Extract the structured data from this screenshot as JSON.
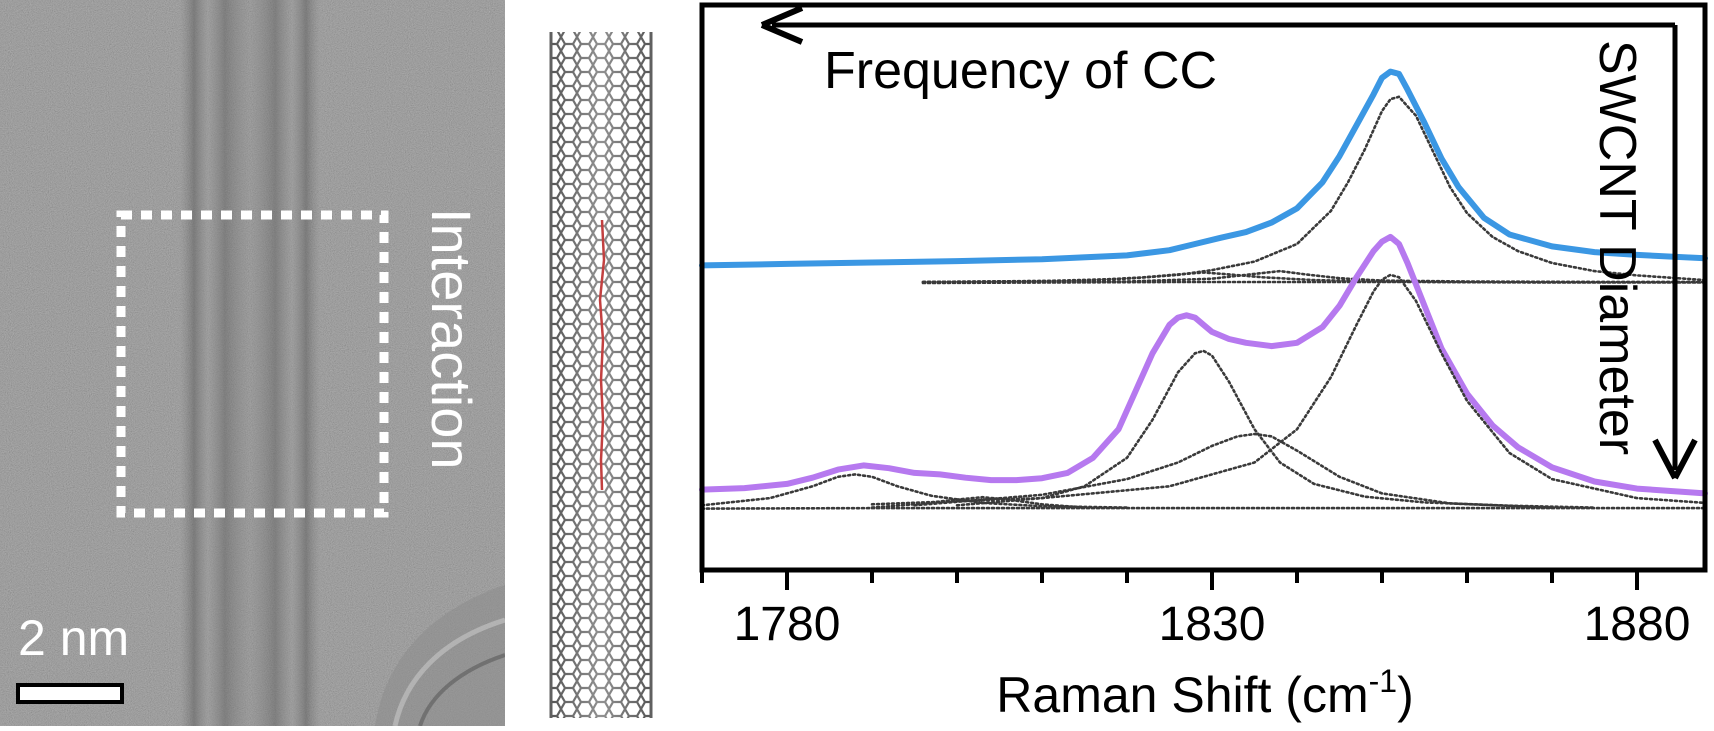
{
  "tem": {
    "region_label": "Interaction",
    "scale_bar_label": "2 nm"
  },
  "chart_data": {
    "type": "line",
    "xlabel": "Raman Shift (cm",
    "xlabel_sup": "-1",
    "xlabel_close": ")",
    "ylabel": "",
    "xlim": [
      1770,
      1888
    ],
    "ylim": [
      0,
      1
    ],
    "xticks": [
      1780,
      1830,
      1880
    ],
    "xtick_labels": [
      "1780",
      "1830",
      "1880"
    ],
    "minor_tick_step": 10,
    "grid": false,
    "legend": "none",
    "annotations": {
      "horizontal_arrow": "Frequency of CC",
      "vertical_arrow": "SWCNT Diameter"
    },
    "series": [
      {
        "color": "#3b97e3",
        "style": "solid",
        "x": [
          1770,
          1780,
          1790,
          1800,
          1810,
          1820,
          1825,
          1828,
          1831,
          1834,
          1837,
          1840,
          1843,
          1845,
          1847,
          1849,
          1850,
          1851,
          1852,
          1853,
          1855,
          1857,
          1859,
          1862,
          1865,
          1870,
          1875,
          1880,
          1888
        ],
        "y": [
          0.515,
          0.518,
          0.521,
          0.524,
          0.528,
          0.536,
          0.547,
          0.56,
          0.573,
          0.585,
          0.605,
          0.635,
          0.69,
          0.745,
          0.81,
          0.875,
          0.91,
          0.923,
          0.918,
          0.885,
          0.815,
          0.74,
          0.68,
          0.615,
          0.58,
          0.555,
          0.543,
          0.537,
          0.53
        ]
      },
      {
        "color": "#3a3a3a",
        "style": "dotted",
        "x": [
          1796,
          1810,
          1820,
          1826,
          1830,
          1835,
          1840,
          1844,
          1846,
          1848,
          1850,
          1851,
          1852,
          1854,
          1856,
          1858,
          1860,
          1863,
          1866,
          1870,
          1875,
          1880,
          1888
        ],
        "y": [
          0.48,
          0.482,
          0.487,
          0.495,
          0.505,
          0.523,
          0.56,
          0.63,
          0.69,
          0.76,
          0.84,
          0.865,
          0.87,
          0.83,
          0.755,
          0.68,
          0.625,
          0.575,
          0.545,
          0.52,
          0.503,
          0.494,
          0.484
        ]
      },
      {
        "color": "#3a3a3a",
        "style": "dotted",
        "x": [
          1796,
          1815,
          1822,
          1826,
          1829,
          1832,
          1836,
          1842,
          1850,
          1860,
          1875,
          1888
        ],
        "y": [
          0.48,
          0.483,
          0.49,
          0.496,
          0.5,
          0.496,
          0.49,
          0.484,
          0.481,
          0.48,
          0.48,
          0.48
        ]
      },
      {
        "color": "#3a3a3a",
        "style": "dotted",
        "x": [
          1796,
          1820,
          1830,
          1835,
          1838,
          1841,
          1845,
          1850,
          1860,
          1875,
          1888
        ],
        "y": [
          0.48,
          0.481,
          0.487,
          0.497,
          0.503,
          0.496,
          0.488,
          0.483,
          0.481,
          0.48,
          0.48
        ]
      },
      {
        "color": "#3a3a3a",
        "style": "dotted",
        "x": [
          1796,
          1810,
          1825,
          1840,
          1855,
          1870,
          1888
        ],
        "y": [
          0.478,
          0.479,
          0.48,
          0.48,
          0.48,
          0.479,
          0.479
        ]
      },
      {
        "color": "#b679ef",
        "style": "solid",
        "x": [
          1770,
          1775,
          1780,
          1783,
          1786,
          1789,
          1792,
          1795,
          1798,
          1801,
          1804,
          1807,
          1810,
          1813,
          1816,
          1819,
          1821,
          1823,
          1825,
          1826,
          1827,
          1828,
          1829,
          1830,
          1832,
          1834,
          1837,
          1840,
          1843,
          1845,
          1847,
          1849,
          1850,
          1851,
          1852,
          1853,
          1855,
          1857,
          1860,
          1863,
          1866,
          1870,
          1875,
          1880,
          1888
        ],
        "y": [
          0.043,
          0.046,
          0.055,
          0.068,
          0.085,
          0.094,
          0.088,
          0.078,
          0.075,
          0.068,
          0.063,
          0.063,
          0.067,
          0.078,
          0.11,
          0.17,
          0.25,
          0.33,
          0.39,
          0.405,
          0.41,
          0.405,
          0.39,
          0.375,
          0.36,
          0.352,
          0.345,
          0.352,
          0.385,
          0.43,
          0.49,
          0.545,
          0.565,
          0.575,
          0.56,
          0.52,
          0.43,
          0.34,
          0.245,
          0.178,
          0.132,
          0.09,
          0.06,
          0.045,
          0.035
        ]
      },
      {
        "color": "#3a3a3a",
        "style": "dotted",
        "x": [
          1770,
          1778,
          1783,
          1786,
          1788,
          1790,
          1793,
          1797,
          1803,
          1810,
          1820
        ],
        "y": [
          0.01,
          0.025,
          0.05,
          0.07,
          0.075,
          0.07,
          0.05,
          0.03,
          0.015,
          0.008,
          0.005
        ]
      },
      {
        "color": "#3a3a3a",
        "style": "dotted",
        "x": [
          1790,
          1795,
          1800,
          1803,
          1806,
          1810,
          1815
        ],
        "y": [
          0.005,
          0.012,
          0.022,
          0.027,
          0.022,
          0.012,
          0.005
        ]
      },
      {
        "color": "#3a3a3a",
        "style": "dotted",
        "x": [
          1800,
          1810,
          1815,
          1820,
          1823,
          1826,
          1828,
          1829,
          1830,
          1832,
          1835,
          1838,
          1842,
          1848,
          1855,
          1865,
          1875
        ],
        "y": [
          0.01,
          0.025,
          0.05,
          0.11,
          0.19,
          0.29,
          0.33,
          0.335,
          0.325,
          0.27,
          0.17,
          0.1,
          0.055,
          0.028,
          0.016,
          0.009,
          0.005
        ]
      },
      {
        "color": "#3a3a3a",
        "style": "dotted",
        "x": [
          1795,
          1810,
          1820,
          1826,
          1830,
          1833,
          1835,
          1837,
          1840,
          1845,
          1850,
          1858,
          1870
        ],
        "y": [
          0.01,
          0.032,
          0.065,
          0.1,
          0.135,
          0.155,
          0.16,
          0.155,
          0.125,
          0.07,
          0.035,
          0.014,
          0.005
        ]
      },
      {
        "color": "#3a3a3a",
        "style": "dotted",
        "x": [
          1790,
          1810,
          1825,
          1835,
          1840,
          1844,
          1847,
          1849,
          1850,
          1851,
          1852,
          1854,
          1857,
          1860,
          1865,
          1870,
          1880,
          1888
        ],
        "y": [
          0.012,
          0.025,
          0.05,
          0.1,
          0.17,
          0.28,
          0.39,
          0.46,
          0.485,
          0.495,
          0.49,
          0.44,
          0.33,
          0.23,
          0.12,
          0.065,
          0.025,
          0.015
        ]
      },
      {
        "color": "#3a3a3a",
        "style": "dotted",
        "x": [
          1770,
          1790,
          1810,
          1830,
          1850,
          1870,
          1888
        ],
        "y": [
          0.003,
          0.004,
          0.004,
          0.004,
          0.004,
          0.004,
          0.004
        ]
      }
    ]
  }
}
